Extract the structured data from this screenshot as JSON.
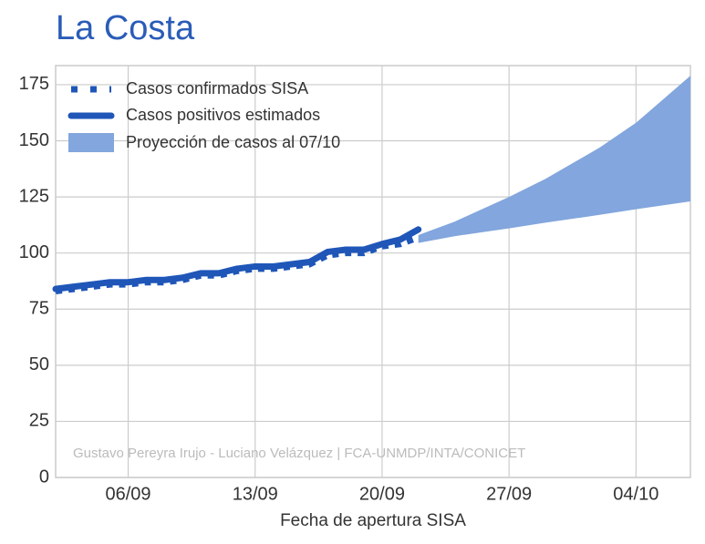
{
  "chart_data": {
    "type": "line",
    "title": "La Costa",
    "xlabel": "Fecha de apertura SISA",
    "annotation": "Gustavo Pereyra Irujo - Luciano Velázquez | FCA-UNMDP/INTA/CONICET",
    "x": [
      "02/09",
      "03/09",
      "04/09",
      "05/09",
      "06/09",
      "07/09",
      "08/09",
      "09/09",
      "10/09",
      "11/09",
      "12/09",
      "13/09",
      "14/09",
      "15/09",
      "16/09",
      "17/09",
      "18/09",
      "19/09",
      "20/09",
      "21/09",
      "22/09"
    ],
    "series": [
      {
        "name": "Casos confirmados SISA",
        "color": "#1f56b8",
        "style": "dotted",
        "values": [
          83,
          84,
          85,
          86,
          86,
          87,
          87,
          88,
          90,
          90,
          92,
          93,
          93,
          94,
          95,
          99,
          100,
          100,
          103,
          104,
          107
        ]
      },
      {
        "name": "Casos positivos estimados",
        "color": "#1f56b8",
        "style": "solid",
        "values": [
          84,
          85,
          86,
          87,
          87,
          88,
          88,
          89,
          91,
          91,
          93,
          94,
          94,
          95,
          96,
          100.5,
          101.5,
          101.5,
          104,
          106,
          110.5
        ]
      }
    ],
    "band": {
      "name": "Proyección de casos al 07/10",
      "color": "#82a6dd",
      "x": [
        "22/09",
        "24/09",
        "27/09",
        "29/09",
        "02/10",
        "04/10",
        "07/10"
      ],
      "lower": [
        104.5,
        107.5,
        111,
        113.5,
        117,
        119.5,
        123
      ],
      "upper": [
        108,
        114,
        125,
        133,
        147,
        158,
        179
      ]
    },
    "xlim": [
      "02/09",
      "07/10"
    ],
    "xticks": [
      "06/09",
      "13/09",
      "20/09",
      "27/09",
      "04/10"
    ],
    "ylim": [
      0,
      183.5
    ],
    "yticks": [
      0,
      25,
      50,
      75,
      100,
      125,
      150,
      175
    ],
    "grid": true,
    "legend": "upper left"
  }
}
